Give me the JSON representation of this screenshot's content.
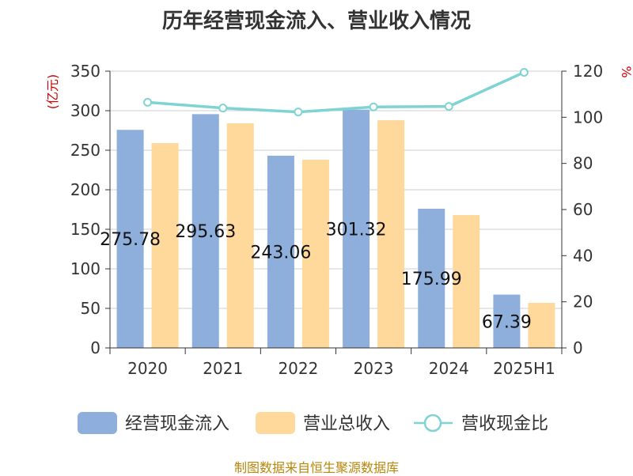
{
  "chart_data": {
    "type": "bar",
    "title": "历年经营现金流入、营业收入情况",
    "y_left_unit": "(亿元)",
    "y_right_unit": "%",
    "categories": [
      "2020",
      "2021",
      "2022",
      "2023",
      "2024",
      "2025H1"
    ],
    "series": [
      {
        "name": "经营现金流入",
        "type": "bar",
        "axis": "left",
        "color": "#8eaedb",
        "values": [
          275.78,
          295.63,
          243.06,
          301.32,
          175.99,
          67.39
        ],
        "labels": [
          "275.78",
          "295.63",
          "243.06",
          "301.32",
          "175.99",
          "67.39"
        ]
      },
      {
        "name": "营业总收入",
        "type": "bar",
        "axis": "left",
        "color": "#ffd89b",
        "values": [
          259,
          284,
          238,
          288,
          168,
          57
        ]
      },
      {
        "name": "营收现金比",
        "type": "line",
        "axis": "right",
        "color": "#7fd3d3",
        "values": [
          106.5,
          104,
          102.3,
          104.5,
          104.7,
          119.5
        ]
      }
    ],
    "y_left": {
      "min": 0,
      "max": 350,
      "ticks": [
        0,
        50,
        100,
        150,
        200,
        250,
        300,
        350
      ]
    },
    "y_right": {
      "min": 0,
      "max": 120,
      "ticks": [
        0,
        20,
        40,
        60,
        80,
        100,
        120
      ]
    },
    "grid": true,
    "legend": "bottom"
  },
  "source": "制图数据来自恒生聚源数据库"
}
